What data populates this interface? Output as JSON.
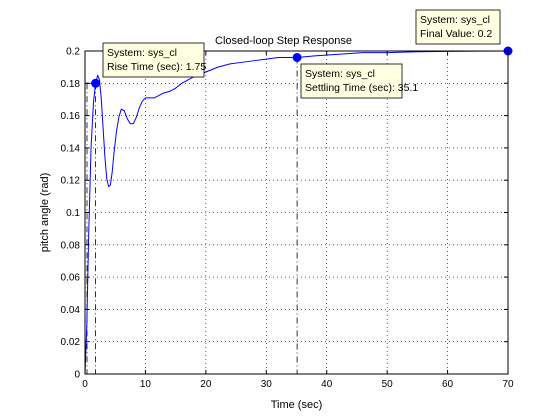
{
  "chart_data": {
    "type": "line",
    "title": "Closed-loop Step Response",
    "xlabel": "Time (sec)",
    "ylabel": "pitch angle (rad)",
    "xlim": [
      0,
      70
    ],
    "ylim": [
      0,
      0.2
    ],
    "xticks": [
      0,
      10,
      20,
      30,
      40,
      50,
      60,
      70
    ],
    "yticks": [
      0,
      0.02,
      0.04,
      0.06,
      0.08,
      0.1,
      0.12,
      0.14,
      0.16,
      0.18,
      0.2
    ],
    "xtick_labels": [
      "0",
      "10",
      "20",
      "30",
      "40",
      "50",
      "60",
      "70"
    ],
    "ytick_labels": [
      "0",
      "0.02",
      "0.04",
      "0.06",
      "0.08",
      "0.1",
      "0.12",
      "0.14",
      "0.16",
      "0.18",
      "0.2"
    ],
    "grid": true,
    "line_color": "#0000ff",
    "marker_color": "#0000ff",
    "series": [
      {
        "x": [
          0,
          0.3,
          0.6,
          1.0,
          1.4,
          1.75,
          2.1,
          2.4,
          2.7,
          3.0,
          3.3,
          3.6,
          3.9,
          4.2,
          4.5,
          4.8,
          5.2,
          5.6,
          6.0,
          6.5,
          7.0,
          7.5,
          8.0,
          8.5,
          9.0,
          9.5,
          10.0,
          10.5,
          11.0,
          11.5,
          12.0,
          13.0,
          14.0,
          15.0,
          16.0,
          17.0,
          18.0,
          20.0,
          22.0,
          24.0,
          26.0,
          28.0,
          30.0,
          32.0,
          35.1,
          38.0,
          42.0,
          46.0,
          50.0,
          55.0,
          60.0,
          65.0,
          70.0
        ],
        "y": [
          0,
          0.03,
          0.085,
          0.14,
          0.168,
          0.18,
          0.185,
          0.182,
          0.17,
          0.152,
          0.134,
          0.121,
          0.116,
          0.117,
          0.125,
          0.137,
          0.15,
          0.159,
          0.164,
          0.163,
          0.158,
          0.155,
          0.155,
          0.159,
          0.165,
          0.169,
          0.171,
          0.171,
          0.171,
          0.171,
          0.172,
          0.174,
          0.175,
          0.177,
          0.18,
          0.182,
          0.184,
          0.187,
          0.19,
          0.192,
          0.193,
          0.194,
          0.195,
          0.196,
          0.196,
          0.197,
          0.198,
          0.199,
          0.199,
          0.1995,
          0.1998,
          0.1999,
          0.2
        ]
      }
    ],
    "datatips": [
      {
        "id": "rise-time",
        "x": 1.75,
        "y": 0.18,
        "line1": "System: sys_cl",
        "line2": "Rise Time (sec): 1.75"
      },
      {
        "id": "settling-time",
        "x": 35.1,
        "y": 0.196,
        "line1": "System: sys_cl",
        "line2": "Settling Time (sec): 35.1"
      },
      {
        "id": "final-value",
        "x": 70,
        "y": 0.2,
        "line1": "System: sys_cl",
        "line2": "Final Value: 0.2"
      }
    ]
  }
}
